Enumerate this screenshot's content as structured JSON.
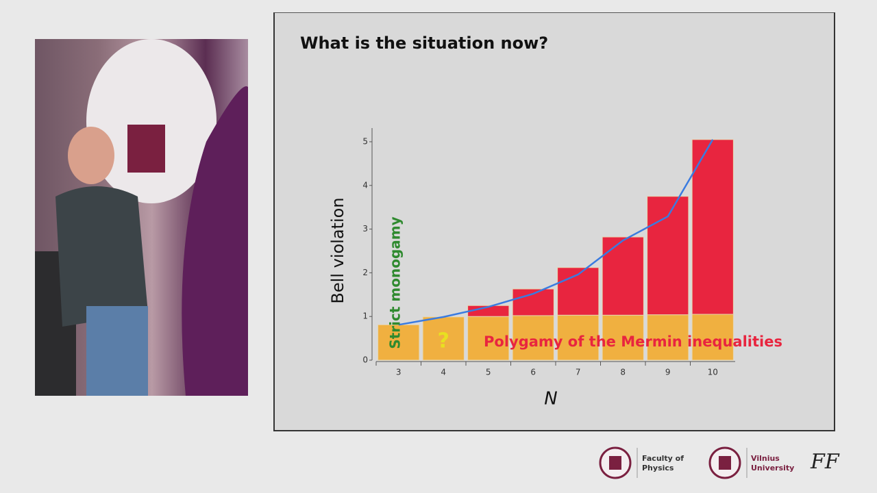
{
  "slide": {
    "title": "What is the situation now?"
  },
  "chart_data": {
    "type": "bar",
    "stacked": true,
    "categories": [
      "3",
      "4",
      "5",
      "6",
      "7",
      "8",
      "9",
      "10"
    ],
    "series": [
      {
        "color": "#f0b040",
        "values": [
          0.81,
          0.99,
          1.0,
          1.02,
          1.03,
          1.03,
          1.04,
          1.05
        ]
      },
      {
        "color": "#e8253f",
        "values": [
          0,
          0,
          0.25,
          0.61,
          1.09,
          1.79,
          2.71,
          4.0
        ]
      }
    ],
    "curve": {
      "type": "line",
      "color": "#3a7be0",
      "values": [
        0.81,
        0.99,
        1.22,
        1.52,
        1.96,
        2.74,
        3.29,
        5.05
      ]
    },
    "ylim": [
      0,
      5
    ],
    "yticks": [
      0,
      1,
      2,
      3,
      4,
      5
    ],
    "y_label": "Bell violation",
    "x_label": "N",
    "annotations": [
      "Strict monogamy",
      "?",
      "Polygamy of the Mermin inequalities"
    ]
  },
  "footer": {
    "faculty": "Faculty of Physics",
    "university": "Vilnius University",
    "logo_text": "FF"
  }
}
